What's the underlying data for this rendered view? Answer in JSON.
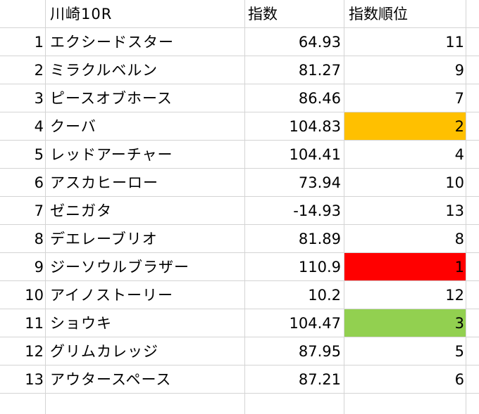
{
  "header": {
    "race": "川崎10R",
    "index": "指数",
    "rank": "指数順位"
  },
  "colors": {
    "rank1": "#ff0000",
    "rank2": "#ffc000",
    "rank3": "#92d050",
    "gridline": "#d4d4d4"
  },
  "rows": [
    {
      "no": "1",
      "name": "エクシードスター",
      "index": "64.93",
      "rank": "11",
      "highlight": ""
    },
    {
      "no": "2",
      "name": "ミラクルベルン",
      "index": "81.27",
      "rank": "9",
      "highlight": ""
    },
    {
      "no": "3",
      "name": "ピースオブホース",
      "index": "86.46",
      "rank": "7",
      "highlight": ""
    },
    {
      "no": "4",
      "name": "クーバ",
      "index": "104.83",
      "rank": "2",
      "highlight": "#ffc000"
    },
    {
      "no": "5",
      "name": "レッドアーチャー",
      "index": "104.41",
      "rank": "4",
      "highlight": ""
    },
    {
      "no": "6",
      "name": "アスカヒーロー",
      "index": "73.94",
      "rank": "10",
      "highlight": ""
    },
    {
      "no": "7",
      "name": "ゼニガタ",
      "index": "-14.93",
      "rank": "13",
      "highlight": ""
    },
    {
      "no": "8",
      "name": "デエレーブリオ",
      "index": "81.89",
      "rank": "8",
      "highlight": ""
    },
    {
      "no": "9",
      "name": "ジーソウルブラザー",
      "index": "110.9",
      "rank": "1",
      "highlight": "#ff0000"
    },
    {
      "no": "10",
      "name": "アイノストーリー",
      "index": "10.2",
      "rank": "12",
      "highlight": ""
    },
    {
      "no": "11",
      "name": "ショウキ",
      "index": "104.47",
      "rank": "3",
      "highlight": "#92d050"
    },
    {
      "no": "12",
      "name": "グリムカレッジ",
      "index": "87.95",
      "rank": "5",
      "highlight": ""
    },
    {
      "no": "13",
      "name": "アウタースペース",
      "index": "87.21",
      "rank": "6",
      "highlight": ""
    }
  ]
}
